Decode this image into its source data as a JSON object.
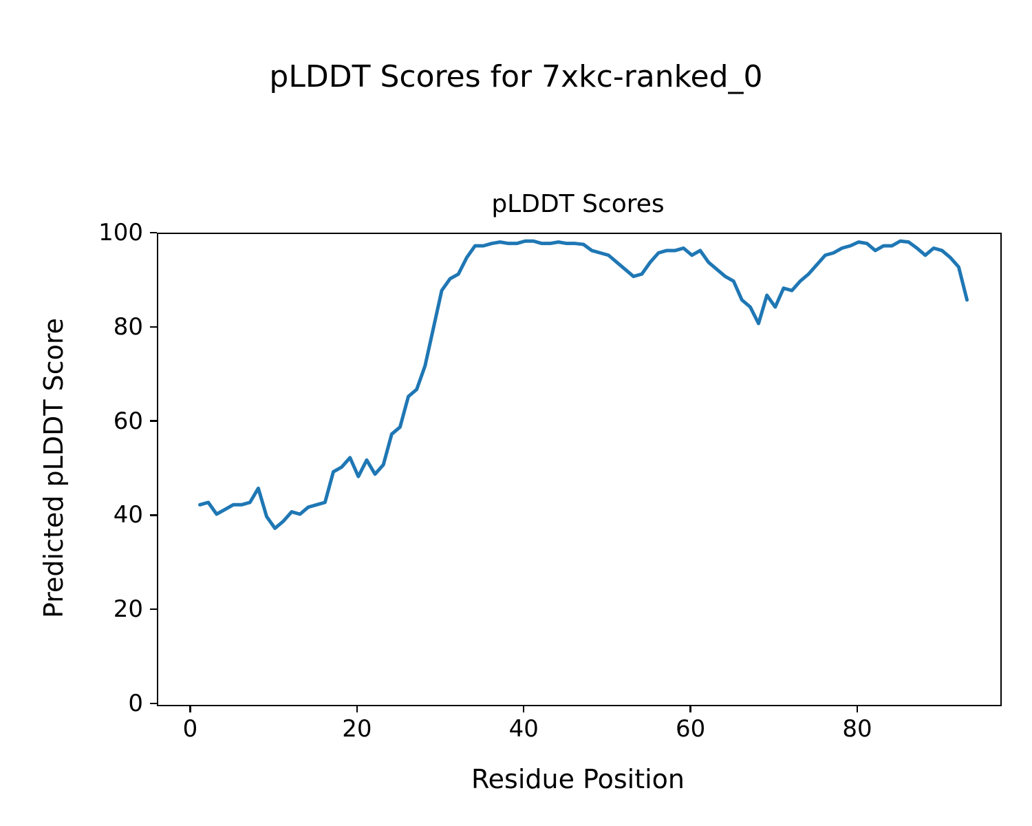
{
  "figure": {
    "suptitle": "pLDDT Scores for 7xkc-ranked_0"
  },
  "chart_data": {
    "type": "line",
    "title": "pLDDT Scores",
    "xlabel": "Residue Position",
    "ylabel": "Predicted pLDDT Score",
    "x": [
      1,
      2,
      3,
      4,
      5,
      6,
      7,
      8,
      9,
      10,
      11,
      12,
      13,
      14,
      15,
      16,
      17,
      18,
      19,
      20,
      21,
      22,
      23,
      24,
      25,
      26,
      27,
      28,
      29,
      30,
      31,
      32,
      33,
      34,
      35,
      36,
      37,
      38,
      39,
      40,
      41,
      42,
      43,
      44,
      45,
      46,
      47,
      48,
      49,
      50,
      51,
      52,
      53,
      54,
      55,
      56,
      57,
      58,
      59,
      60,
      61,
      62,
      63,
      64,
      65,
      66,
      67,
      68,
      69,
      70,
      71,
      72,
      73,
      74,
      75,
      76,
      77,
      78,
      79,
      80,
      81,
      82,
      83,
      84,
      85,
      86,
      87,
      88,
      89,
      90,
      91,
      92,
      93
    ],
    "y": [
      42.5,
      43,
      40.5,
      41.5,
      42.5,
      42.5,
      43,
      46,
      40,
      37.5,
      39,
      41,
      40.5,
      42,
      42.5,
      43,
      49.5,
      50.5,
      52.5,
      48.5,
      52,
      49,
      51,
      57.5,
      59,
      65.5,
      67,
      72,
      80,
      88,
      90.5,
      91.5,
      95,
      97.5,
      97.5,
      98,
      98.3,
      98,
      98,
      98.5,
      98.5,
      98,
      98,
      98.3,
      98,
      98,
      97.8,
      96.5,
      96,
      95.5,
      94,
      92.5,
      91,
      91.5,
      94,
      96,
      96.5,
      96.5,
      97,
      95.5,
      96.5,
      94,
      92.5,
      91,
      90,
      86,
      84.5,
      81,
      87,
      84.5,
      88.5,
      88,
      90,
      91.5,
      93.5,
      95.5,
      96,
      97,
      97.5,
      98.3,
      98,
      96.5,
      97.5,
      97.5,
      98.5,
      98.3,
      97,
      95.5,
      97,
      96.5,
      95,
      93,
      86
    ],
    "xlim": [
      -4,
      97
    ],
    "ylim": [
      0,
      100
    ],
    "x_ticks": [
      0,
      20,
      40,
      60,
      80
    ],
    "y_ticks": [
      0,
      20,
      40,
      60,
      80,
      100
    ],
    "line_color": "#1f77b4",
    "line_width": 5,
    "grid": false,
    "legend": "none"
  }
}
